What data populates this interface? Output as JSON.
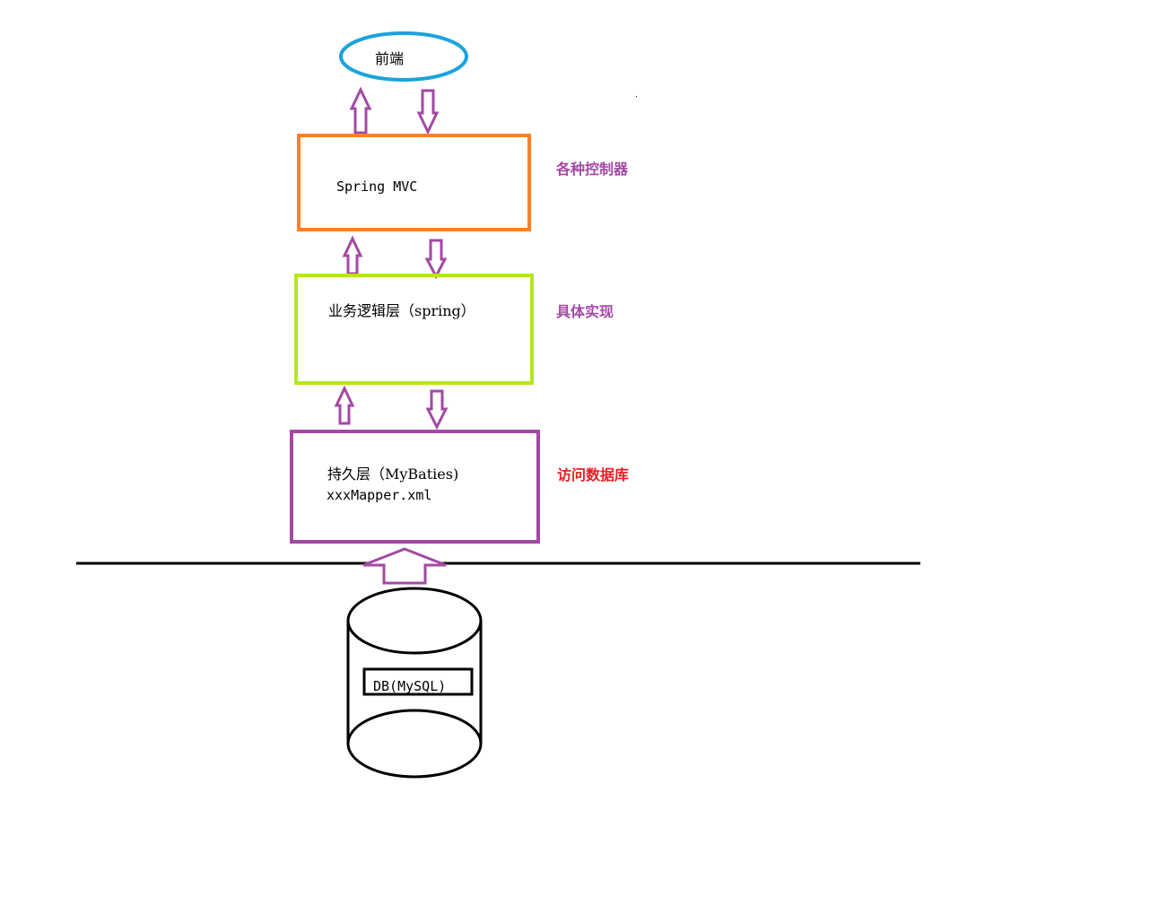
{
  "colors": {
    "frontend_ellipse": "#1aa3dd",
    "controller_box": "#ff7f27",
    "service_box": "#b5e61d",
    "persistence_box": "#a349a4",
    "arrow": "#a349a4",
    "note_purple": "#a349a4",
    "note_red": "#ed1c24",
    "divider": "#000000"
  },
  "frontend": {
    "label": "前端"
  },
  "controller_layer": {
    "label": "Spring MVC",
    "note": "各种控制器"
  },
  "service_layer": {
    "label": "业务逻辑层（spring）",
    "note": "具体实现"
  },
  "persistence_layer": {
    "label": "持久层（MyBaties)",
    "sublabel": "xxxMapper.xml",
    "note": "访问数据库"
  },
  "database": {
    "label": "DB(MySQL)"
  }
}
